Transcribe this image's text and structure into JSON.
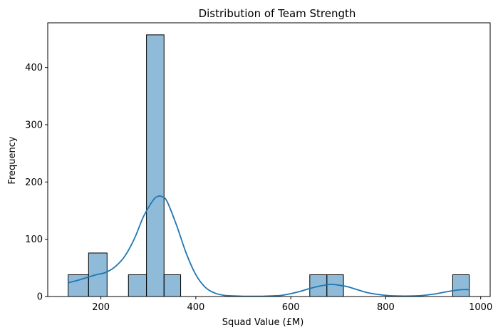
{
  "chart_data": {
    "type": "histogram",
    "title": "Distribution of Team Strength",
    "xlabel": "Squad Value (£M)",
    "ylabel": "Frequency",
    "xlim": [
      88,
      1020
    ],
    "ylim": [
      0,
      478
    ],
    "xticks": [
      200,
      400,
      600,
      800,
      1000
    ],
    "yticks": [
      0,
      100,
      200,
      300,
      400
    ],
    "bar_color": "#1f77b4",
    "bar_fill_opacity": 0.5,
    "bar_edge_color": "#000000",
    "kde_color": "#1f77b4",
    "grid": false,
    "bins": [
      {
        "x0": 131,
        "x1": 174,
        "count": 38
      },
      {
        "x0": 174,
        "x1": 213,
        "count": 76
      },
      {
        "x0": 258,
        "x1": 296,
        "count": 38
      },
      {
        "x0": 296,
        "x1": 333,
        "count": 457
      },
      {
        "x0": 333,
        "x1": 368,
        "count": 38
      },
      {
        "x0": 640,
        "x1": 676,
        "count": 38
      },
      {
        "x0": 676,
        "x1": 711,
        "count": 38
      },
      {
        "x0": 941,
        "x1": 976,
        "count": 38
      }
    ],
    "kde": {
      "x": [
        131,
        150,
        170,
        190,
        210,
        230,
        250,
        270,
        290,
        310,
        320,
        330,
        340,
        360,
        380,
        400,
        420,
        440,
        460,
        480,
        500,
        520,
        540,
        560,
        580,
        600,
        620,
        640,
        660,
        680,
        690,
        700,
        720,
        740,
        760,
        780,
        800,
        820,
        840,
        860,
        880,
        900,
        920,
        940,
        960,
        976
      ],
      "y": [
        24,
        28,
        33,
        38,
        42,
        52,
        70,
        100,
        140,
        168,
        175,
        174,
        165,
        123,
        75,
        38,
        16,
        6,
        2,
        1,
        0.5,
        0.5,
        0.5,
        1,
        2,
        5,
        9,
        14,
        18,
        21,
        21,
        20,
        17,
        12,
        7,
        4,
        2,
        1,
        0.7,
        1,
        2,
        4,
        7,
        10,
        12,
        12
      ]
    }
  }
}
